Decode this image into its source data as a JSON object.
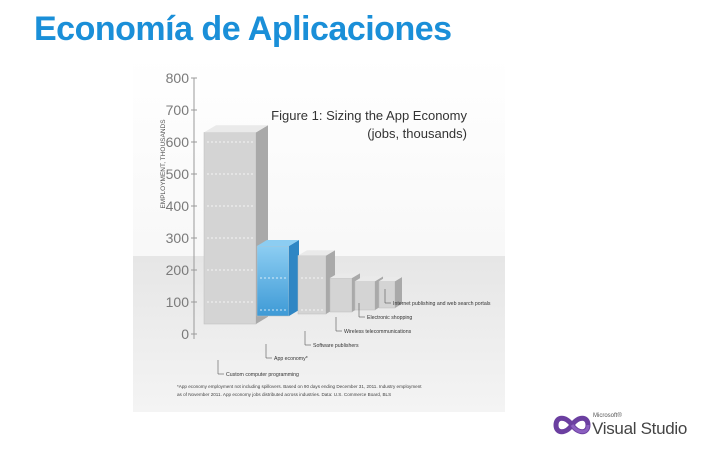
{
  "slide": {
    "title": "Economía de Aplicaciones"
  },
  "chart_data": {
    "type": "bar",
    "title": "Figure 1: Sizing the App Economy",
    "subtitle": "(jobs, thousands)",
    "ylabel": "EMPLOYMENT, THOUSANDS",
    "xlabel": "",
    "ylim": [
      0,
      800
    ],
    "yticks": [
      "800",
      "700",
      "600",
      "500",
      "400",
      "300",
      "200",
      "100",
      "0"
    ],
    "categories": [
      "Custom computer programming",
      "App economy*",
      "Software publishers",
      "Wireless telecommunications",
      "Electronic shopping",
      "Internet publishing and web search portals"
    ],
    "values": [
      630,
      300,
      270,
      200,
      190,
      190
    ],
    "highlight_index": 1,
    "colors": {
      "bar_front": "#d4d4d4",
      "bar_side": "#a9a9a9",
      "bar_top": "#eaeaea",
      "highlight_front": "#5fb2e6",
      "highlight_side": "#2f86c4",
      "highlight_top": "#8ccdf2"
    },
    "footnote_lines": [
      "*App economy employment not including spillovers. Based on 90 days ending December 31, 2011. Industry employment",
      "as of November 2011. App economy jobs distributed across industries. Data: U.S. Commerce Board, BLS"
    ]
  },
  "branding": {
    "small": "Microsoft®",
    "name": "Visual Studio"
  }
}
